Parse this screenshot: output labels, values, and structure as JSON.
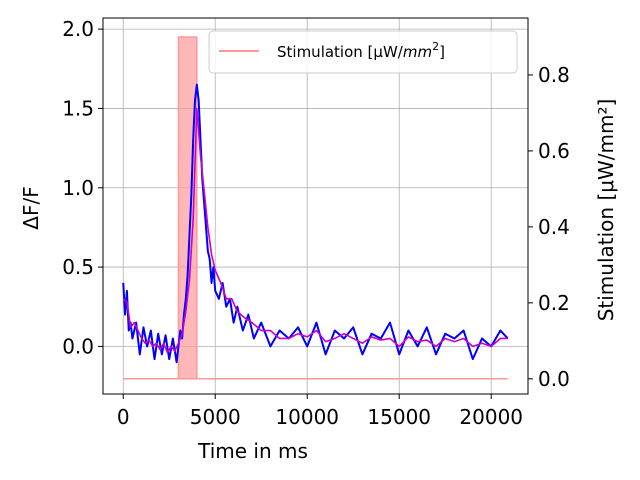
{
  "chart_data": {
    "type": "line",
    "xlabel": "Time in ms",
    "ylabel_left": "ΔF/F",
    "ylabel_right": "Stimulation [μW/mm²]",
    "xlim": [
      -1100,
      22000
    ],
    "ylim_left": [
      -0.3,
      2.07
    ],
    "ylim_right": [
      -0.04,
      0.95
    ],
    "x_ticks": [
      0,
      5000,
      10000,
      15000,
      20000
    ],
    "x_tick_labels": [
      "0",
      "5000",
      "10000",
      "15000",
      "20000"
    ],
    "y_left_ticks": [
      0.0,
      0.5,
      1.0,
      1.5,
      2.0
    ],
    "y_left_tick_labels": [
      "0.0",
      "0.5",
      "1.0",
      "1.5",
      "2.0"
    ],
    "y_right_ticks": [
      0.0,
      0.2,
      0.4,
      0.6,
      0.8
    ],
    "y_right_tick_labels": [
      "0.0",
      "0.2",
      "0.4",
      "0.6",
      "0.8"
    ],
    "grid": true,
    "legend_position": "top-right",
    "legend": {
      "label_prefix": "Stimulation [",
      "label_mu": "μ",
      "label_w": "W/",
      "label_mm": "mm",
      "label_exp": "2",
      "label_suffix": "]"
    },
    "series": [
      {
        "name": "Stimulation [μW/mm²]",
        "axis": "right",
        "color": "#ff9999",
        "x": [
          0,
          2999,
          3000,
          3999,
          4000,
          20900
        ],
        "y": [
          0.0,
          0.0,
          0.9,
          0.9,
          0.0,
          0.0
        ]
      },
      {
        "axis": "left",
        "color": "#0000ff",
        "x": [
          0,
          100,
          200,
          300,
          400,
          500,
          700,
          900,
          1100,
          1300,
          1500,
          1700,
          1900,
          2100,
          2300,
          2500,
          2700,
          2900,
          3000,
          3100,
          3200,
          3300,
          3400,
          3500,
          3600,
          3700,
          3800,
          3900,
          4000,
          4100,
          4200,
          4300,
          4400,
          4500,
          4600,
          4700,
          4800,
          4900,
          5000,
          5200,
          5400,
          5600,
          5800,
          6000,
          6200,
          6500,
          6800,
          7100,
          7500,
          8000,
          8500,
          9000,
          9500,
          10000,
          10500,
          11000,
          11500,
          12000,
          12500,
          13000,
          13500,
          14000,
          14500,
          15000,
          15500,
          16000,
          16500,
          17000,
          17500,
          18000,
          18500,
          19000,
          19500,
          20000,
          20500,
          20900
        ],
        "y": [
          0.4,
          0.2,
          0.35,
          0.1,
          0.15,
          0.05,
          0.15,
          -0.05,
          0.12,
          0.0,
          0.1,
          -0.08,
          0.08,
          -0.05,
          0.07,
          -0.08,
          0.05,
          -0.1,
          0.0,
          0.1,
          0.05,
          0.2,
          0.3,
          0.45,
          0.7,
          0.95,
          1.3,
          1.55,
          1.65,
          1.55,
          1.3,
          1.05,
          0.9,
          0.75,
          0.6,
          0.55,
          0.4,
          0.5,
          0.35,
          0.3,
          0.4,
          0.25,
          0.3,
          0.15,
          0.25,
          0.1,
          0.2,
          0.05,
          0.15,
          0.0,
          0.1,
          0.05,
          0.12,
          0.0,
          0.15,
          -0.05,
          0.1,
          0.05,
          0.12,
          -0.05,
          0.08,
          0.05,
          0.15,
          -0.05,
          0.1,
          0.0,
          0.12,
          -0.05,
          0.08,
          0.05,
          0.1,
          -0.08,
          0.05,
          0.0,
          0.1,
          0.05
        ]
      },
      {
        "axis": "left",
        "color": "#cc00cc",
        "x": [
          0,
          200,
          400,
          600,
          800,
          1000,
          1200,
          1400,
          1600,
          1800,
          2000,
          2200,
          2400,
          2600,
          2800,
          3000,
          3200,
          3400,
          3600,
          3800,
          4000,
          4200,
          4400,
          4600,
          4800,
          5000,
          5300,
          5600,
          5900,
          6200,
          6600,
          7000,
          7500,
          8000,
          8500,
          9000,
          9500,
          10000,
          10500,
          11000,
          11500,
          12000,
          12500,
          13000,
          13500,
          14000,
          14500,
          15000,
          15500,
          16000,
          16500,
          17000,
          17500,
          18000,
          18500,
          19000,
          19500,
          20000,
          20500,
          20900
        ],
        "y": [
          0.3,
          0.28,
          0.12,
          0.15,
          0.1,
          0.05,
          0.02,
          0.04,
          0.0,
          0.02,
          -0.02,
          0.02,
          -0.04,
          0.0,
          -0.03,
          0.02,
          0.08,
          0.22,
          0.42,
          0.8,
          1.5,
          1.2,
          0.98,
          0.75,
          0.58,
          0.48,
          0.4,
          0.3,
          0.3,
          0.22,
          0.18,
          0.15,
          0.1,
          0.1,
          0.05,
          0.05,
          0.08,
          0.06,
          0.1,
          0.03,
          0.05,
          0.08,
          0.05,
          0.02,
          0.06,
          0.04,
          0.05,
          0.0,
          0.06,
          0.03,
          0.04,
          0.0,
          0.05,
          0.03,
          0.05,
          0.0,
          0.02,
          0.0,
          0.05,
          0.05
        ]
      }
    ]
  }
}
